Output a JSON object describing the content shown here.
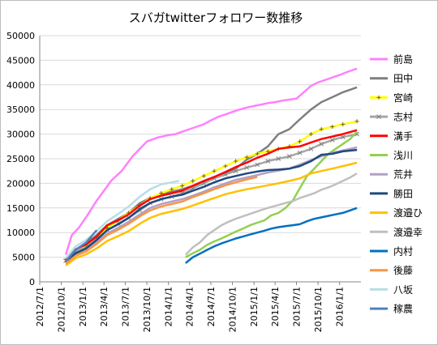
{
  "chart_data": {
    "type": "line",
    "title": "スバガtwitterフォロワー数推移",
    "xlabel": "",
    "ylabel": "",
    "ylim": [
      0,
      50000
    ],
    "yticks": [
      "0",
      "5000",
      "10000",
      "15000",
      "20000",
      "25000",
      "30000",
      "35000",
      "40000",
      "45000",
      "50000"
    ],
    "xticks": [
      "2012/7/1",
      "2012/10/1",
      "2013/1/1",
      "2013/4/1",
      "2013/7/1",
      "2013/10/1",
      "2014/1/1",
      "2014/4/1",
      "2014/7/1",
      "2014/10/1",
      "2015/1/1",
      "2015/4/1",
      "2015/7/1",
      "2015/10/1",
      "2016/1/1"
    ],
    "grid": true,
    "legend_position": "right",
    "series": [
      {
        "name": "前島",
        "color": "#ff80ff",
        "marker": "none",
        "x": [
          "2012-10-20",
          "2012-11-15",
          "2012-12-15",
          "2013-01-20",
          "2013-03-01",
          "2013-04-01",
          "2013-05-01",
          "2013-06-15",
          "2013-08-01",
          "2013-09-01",
          "2013-10-01",
          "2013-11-15",
          "2014-01-01",
          "2014-02-01",
          "2014-03-01",
          "2014-04-01",
          "2014-05-01",
          "2014-06-01",
          "2014-07-01",
          "2014-08-01",
          "2014-09-01",
          "2014-10-01",
          "2014-11-01",
          "2014-12-01",
          "2015-01-01",
          "2015-02-01",
          "2015-03-01",
          "2015-04-01",
          "2015-05-01",
          "2015-06-01",
          "2015-07-01",
          "2015-08-01",
          "2015-09-01",
          "2015-10-01",
          "2015-11-01",
          "2015-12-01",
          "2016-01-01",
          "2016-02-01",
          "2016-03-15"
        ],
        "y": [
          5500,
          9500,
          11000,
          13500,
          16500,
          18500,
          20500,
          22500,
          25500,
          27000,
          28500,
          29300,
          29800,
          30000,
          30500,
          31000,
          31500,
          32000,
          32800,
          33500,
          34000,
          34500,
          35000,
          35400,
          35700,
          36000,
          36300,
          36500,
          36800,
          37000,
          37200,
          38500,
          39800,
          40500,
          41000,
          41500,
          42000,
          42600,
          43300
        ]
      },
      {
        "name": "田中",
        "color": "#7f7f7f",
        "marker": "none",
        "x": [
          "2012-10-20",
          "2012-12-01",
          "2013-01-15",
          "2013-03-01",
          "2013-04-15",
          "2013-06-01",
          "2013-07-15",
          "2013-09-01",
          "2013-10-15",
          "2013-12-01",
          "2014-01-15",
          "2014-03-01",
          "2014-04-15",
          "2014-06-01",
          "2014-07-15",
          "2014-09-01",
          "2014-10-15",
          "2014-12-01",
          "2015-01-15",
          "2015-03-01",
          "2015-04-15",
          "2015-06-01",
          "2015-07-15",
          "2015-09-01",
          "2015-10-15",
          "2015-12-01",
          "2016-01-15",
          "2016-03-15"
        ],
        "y": [
          4000,
          6500,
          7800,
          9500,
          11500,
          12800,
          14000,
          16000,
          17000,
          17800,
          18300,
          18800,
          19500,
          20200,
          21000,
          22000,
          23000,
          24800,
          26000,
          27500,
          30000,
          31000,
          33000,
          35000,
          36500,
          37500,
          38500,
          39500
        ]
      },
      {
        "name": "宮崎",
        "color": "#ffff00",
        "marker": "+",
        "x": [
          "2012-10-20",
          "2012-12-01",
          "2013-01-15",
          "2013-03-01",
          "2013-04-15",
          "2013-06-01",
          "2013-07-15",
          "2013-09-01",
          "2013-10-15",
          "2013-12-01",
          "2014-01-15",
          "2014-03-01",
          "2014-04-15",
          "2014-06-01",
          "2014-07-15",
          "2014-09-01",
          "2014-10-15",
          "2014-12-01",
          "2015-01-15",
          "2015-03-01",
          "2015-04-15",
          "2015-06-01",
          "2015-07-15",
          "2015-09-01",
          "2015-10-15",
          "2015-12-01",
          "2016-01-15",
          "2016-03-15"
        ],
        "y": [
          4500,
          6000,
          7500,
          9000,
          11000,
          12500,
          14000,
          15500,
          17000,
          18000,
          18800,
          19500,
          20500,
          21500,
          22500,
          23500,
          24500,
          25300,
          26000,
          26500,
          27000,
          27500,
          28500,
          30000,
          31000,
          31500,
          32000,
          32600
        ]
      },
      {
        "name": "志村",
        "color": "#a6a6a6",
        "marker": "x",
        "x": [
          "2012-10-20",
          "2012-12-01",
          "2013-01-15",
          "2013-03-01",
          "2013-04-15",
          "2013-06-01",
          "2013-07-15",
          "2013-09-01",
          "2013-10-15",
          "2013-12-01",
          "2014-01-15",
          "2014-03-01",
          "2014-04-15",
          "2014-06-01",
          "2014-07-15",
          "2014-09-01",
          "2014-10-15",
          "2014-12-01",
          "2015-01-15",
          "2015-03-01",
          "2015-04-15",
          "2015-06-01",
          "2015-07-15",
          "2015-09-01",
          "2015-10-15",
          "2015-12-01",
          "2016-01-15",
          "2016-03-15"
        ],
        "y": [
          4300,
          6200,
          7000,
          8700,
          10500,
          11800,
          13000,
          14500,
          16000,
          16800,
          17300,
          18000,
          19000,
          20000,
          21000,
          21800,
          22500,
          23200,
          23800,
          24500,
          25000,
          25500,
          26200,
          27000,
          28000,
          28800,
          29400,
          30000
        ]
      },
      {
        "name": "溝手",
        "color": "#ff0000",
        "marker": "none",
        "x": [
          "2012-10-20",
          "2012-12-01",
          "2013-01-15",
          "2013-03-01",
          "2013-04-15",
          "2013-06-01",
          "2013-07-15",
          "2013-09-01",
          "2013-10-15",
          "2013-12-01",
          "2014-01-15",
          "2014-03-01",
          "2014-04-15",
          "2014-06-01",
          "2014-07-15",
          "2014-09-01",
          "2014-10-15",
          "2014-12-01",
          "2015-01-15",
          "2015-03-01",
          "2015-04-15",
          "2015-06-01",
          "2015-07-15",
          "2015-09-01",
          "2015-10-15",
          "2015-12-01",
          "2016-01-15",
          "2016-03-15"
        ],
        "y": [
          4400,
          6600,
          7600,
          9200,
          11500,
          12500,
          13700,
          15500,
          16800,
          17500,
          18000,
          18500,
          19500,
          20500,
          21300,
          22300,
          23300,
          24200,
          25200,
          26000,
          27000,
          27300,
          27500,
          28300,
          29000,
          29500,
          30000,
          30800
        ]
      },
      {
        "name": "浅川",
        "color": "#92d050",
        "marker": "none",
        "x": [
          "2014-03-15",
          "2014-04-15",
          "2014-05-15",
          "2014-06-15",
          "2014-07-15",
          "2014-08-15",
          "2014-09-15",
          "2014-10-15",
          "2014-11-15",
          "2014-12-15",
          "2015-01-15",
          "2015-02-15",
          "2015-03-15",
          "2015-04-15",
          "2015-05-15",
          "2015-06-15",
          "2015-07-15",
          "2015-08-15",
          "2015-09-15",
          "2015-10-15",
          "2015-11-15",
          "2015-12-15",
          "2016-01-15",
          "2016-02-15",
          "2016-03-15"
        ],
        "y": [
          5000,
          5800,
          6500,
          7500,
          8200,
          8800,
          9500,
          10200,
          10800,
          11500,
          12000,
          12500,
          13500,
          14000,
          15000,
          16500,
          19000,
          21500,
          23000,
          24500,
          26000,
          27000,
          28000,
          29000,
          30500
        ]
      },
      {
        "name": "荒井",
        "color": "#b1a0c7",
        "marker": "none",
        "x": [
          "2012-10-20",
          "2012-12-01",
          "2013-01-15",
          "2013-03-01",
          "2013-04-15",
          "2013-06-01",
          "2013-07-15",
          "2013-09-01",
          "2013-10-15",
          "2013-12-01",
          "2014-01-15",
          "2014-03-01",
          "2014-04-15",
          "2014-06-01",
          "2014-07-15",
          "2014-09-01",
          "2014-10-15",
          "2014-12-01",
          "2015-01-15",
          "2015-03-01",
          "2015-04-15",
          "2015-06-01",
          "2015-07-15",
          "2015-09-01",
          "2015-10-15",
          "2015-12-01",
          "2016-01-15",
          "2016-03-15"
        ],
        "y": [
          3800,
          5500,
          6500,
          8000,
          9800,
          11000,
          12200,
          13700,
          15000,
          15800,
          16300,
          16800,
          17500,
          18300,
          19200,
          20000,
          20700,
          21200,
          21700,
          22200,
          22600,
          23000,
          23800,
          24700,
          25500,
          26200,
          26700,
          27300
        ]
      },
      {
        "name": "勝田",
        "color": "#1f497d",
        "marker": "none",
        "x": [
          "2012-10-20",
          "2012-12-01",
          "2013-01-15",
          "2013-03-01",
          "2013-04-15",
          "2013-06-01",
          "2013-07-15",
          "2013-09-01",
          "2013-10-15",
          "2013-12-01",
          "2014-01-15",
          "2014-03-01",
          "2014-04-15",
          "2014-06-01",
          "2014-07-15",
          "2014-09-01",
          "2014-10-15",
          "2014-12-01",
          "2015-01-15",
          "2015-03-01",
          "2015-04-15",
          "2015-06-01",
          "2015-07-15",
          "2015-09-01",
          "2015-10-15",
          "2015-12-01",
          "2016-01-15",
          "2016-03-15"
        ],
        "y": [
          4000,
          5800,
          6800,
          8500,
          10500,
          11700,
          13000,
          14800,
          16000,
          16800,
          17300,
          17700,
          18500,
          19300,
          20200,
          21000,
          21500,
          22000,
          22400,
          22700,
          22800,
          23000,
          23500,
          24500,
          25800,
          26000,
          26500,
          26800
        ]
      },
      {
        "name": "渡邉ひ",
        "color": "#ffc000",
        "marker": "none",
        "x": [
          "2012-10-20",
          "2012-12-01",
          "2013-01-15",
          "2013-03-01",
          "2013-04-15",
          "2013-06-01",
          "2013-07-15",
          "2013-09-01",
          "2013-10-15",
          "2013-12-01",
          "2014-01-15",
          "2014-03-01",
          "2014-04-15",
          "2014-06-01",
          "2014-07-15",
          "2014-09-01",
          "2014-10-15",
          "2014-12-01",
          "2015-01-15",
          "2015-03-01",
          "2015-04-15",
          "2015-06-01",
          "2015-07-15",
          "2015-09-01",
          "2015-10-15",
          "2015-12-01",
          "2016-01-15",
          "2016-03-15"
        ],
        "y": [
          3300,
          4800,
          5600,
          6800,
          8300,
          9300,
          10300,
          11800,
          13000,
          13800,
          14300,
          14800,
          15500,
          16300,
          17000,
          17800,
          18300,
          18800,
          19200,
          19600,
          20000,
          20500,
          21000,
          22000,
          22500,
          23000,
          23500,
          24200
        ]
      },
      {
        "name": "渡邉幸",
        "color": "#bfbfbf",
        "marker": "none",
        "x": [
          "2014-03-15",
          "2014-04-15",
          "2014-05-15",
          "2014-06-15",
          "2014-07-15",
          "2014-08-15",
          "2014-09-15",
          "2014-10-15",
          "2014-11-15",
          "2014-12-15",
          "2015-01-15",
          "2015-02-15",
          "2015-03-15",
          "2015-04-15",
          "2015-05-15",
          "2015-06-15",
          "2015-07-15",
          "2015-08-15",
          "2015-09-15",
          "2015-10-15",
          "2015-11-15",
          "2015-12-15",
          "2016-01-15",
          "2016-02-15",
          "2016-03-15"
        ],
        "y": [
          5500,
          7000,
          8000,
          9500,
          10500,
          11500,
          12200,
          12800,
          13300,
          13800,
          14300,
          14800,
          15200,
          15600,
          16000,
          16400,
          17000,
          17500,
          18000,
          18700,
          19200,
          19800,
          20500,
          21200,
          22000
        ]
      },
      {
        "name": "内村",
        "color": "#0070c0",
        "marker": "none",
        "x": [
          "2014-03-15",
          "2014-04-15",
          "2014-05-15",
          "2014-06-15",
          "2014-07-15",
          "2014-08-15",
          "2014-09-15",
          "2014-10-15",
          "2014-11-15",
          "2014-12-15",
          "2015-01-15",
          "2015-02-15",
          "2015-03-15",
          "2015-04-15",
          "2015-05-15",
          "2015-06-15",
          "2015-07-15",
          "2015-08-15",
          "2015-09-15",
          "2015-10-15",
          "2015-11-15",
          "2015-12-15",
          "2016-01-15",
          "2016-02-15",
          "2016-03-15"
        ],
        "y": [
          3800,
          5000,
          5700,
          6500,
          7200,
          7800,
          8300,
          8800,
          9200,
          9600,
          10000,
          10400,
          10800,
          11100,
          11300,
          11500,
          11700,
          12300,
          12800,
          13100,
          13400,
          13700,
          14000,
          14500,
          15000
        ]
      },
      {
        "name": "後藤",
        "color": "#f79646",
        "marker": "none",
        "x": [
          "2012-10-20",
          "2012-12-01",
          "2013-01-15",
          "2013-03-01",
          "2013-04-15",
          "2013-06-01",
          "2013-07-15",
          "2013-09-01",
          "2013-10-15",
          "2013-12-01",
          "2014-01-15",
          "2014-03-01",
          "2014-04-15",
          "2014-06-01",
          "2014-07-15",
          "2014-09-01",
          "2014-10-15",
          "2014-12-01",
          "2015-01-15"
        ],
        "y": [
          3700,
          5300,
          6200,
          7700,
          9500,
          10600,
          11800,
          13300,
          14500,
          15300,
          15800,
          16300,
          17200,
          18000,
          18800,
          19600,
          20200,
          20800,
          21300
        ]
      },
      {
        "name": "八坂",
        "color": "#b7dee8",
        "marker": "none",
        "x": [
          "2012-10-20",
          "2012-12-01",
          "2013-01-15",
          "2013-03-01",
          "2013-04-15",
          "2013-06-01",
          "2013-07-15",
          "2013-09-01",
          "2013-10-15",
          "2013-12-01",
          "2014-01-15",
          "2014-02-15"
        ],
        "y": [
          4800,
          7200,
          8500,
          10300,
          12300,
          13800,
          15300,
          17300,
          18800,
          19800,
          20200,
          20500
        ]
      },
      {
        "name": "稼農",
        "color": "#4f81bd",
        "marker": "none",
        "x": [
          "2012-10-20",
          "2012-12-01",
          "2013-01-15",
          "2013-03-01"
        ],
        "y": [
          4200,
          6500,
          8000,
          10500
        ]
      }
    ]
  }
}
